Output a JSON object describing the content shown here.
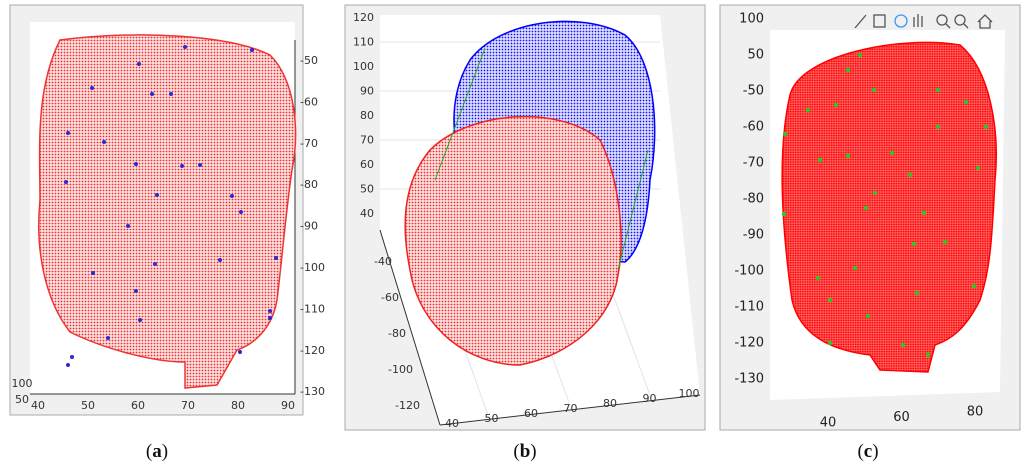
{
  "panels": [
    {
      "caption_open": "(",
      "caption_letter": "a",
      "caption_close": ")",
      "yticks": [
        "-50",
        "-60",
        "-70",
        "-80",
        "-90",
        "-100",
        "-110",
        "-120",
        "-130"
      ],
      "xticks": [
        "40",
        "50",
        "60",
        "70",
        "80",
        "90"
      ],
      "zticks": [
        "100",
        "50"
      ]
    },
    {
      "caption_open": "(",
      "caption_letter": "b",
      "caption_close": ")",
      "zticks": [
        "120",
        "110",
        "100",
        "90",
        "80",
        "70",
        "60",
        "50",
        "40"
      ],
      "yticks": [
        "-40",
        "-60",
        "-80",
        "-100",
        "-120"
      ],
      "xticks": [
        "40",
        "50",
        "60",
        "70",
        "80",
        "90",
        "100"
      ]
    },
    {
      "caption_open": "(",
      "caption_letter": "c",
      "caption_close": ")",
      "yticks": [
        "100",
        "50",
        "-50",
        "-60",
        "-70",
        "-80",
        "-90",
        "-100",
        "-110",
        "-120",
        "-130"
      ],
      "xticks": [
        "40",
        "60",
        "80"
      ]
    }
  ]
}
